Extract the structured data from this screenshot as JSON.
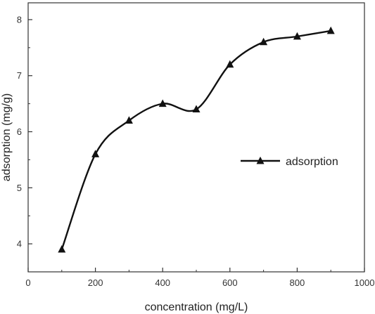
{
  "chart_data": {
    "type": "line",
    "title": "",
    "xlabel": "concentration (mg/L)",
    "ylabel": "adsorption (mg/g)",
    "xlim": [
      0,
      1000
    ],
    "ylim": [
      3.5,
      8.3
    ],
    "x_ticks": [
      0,
      200,
      400,
      600,
      800,
      1000
    ],
    "y_ticks": [
      4,
      5,
      6,
      7,
      8
    ],
    "grid": false,
    "legend_position": "center-right",
    "series": [
      {
        "name": "adsorption",
        "marker": "triangle",
        "color": "#111111",
        "x": [
          100,
          200,
          300,
          400,
          500,
          600,
          700,
          800,
          900
        ],
        "y": [
          3.9,
          5.6,
          6.2,
          6.5,
          6.4,
          7.2,
          7.6,
          7.7,
          7.8
        ]
      }
    ]
  }
}
